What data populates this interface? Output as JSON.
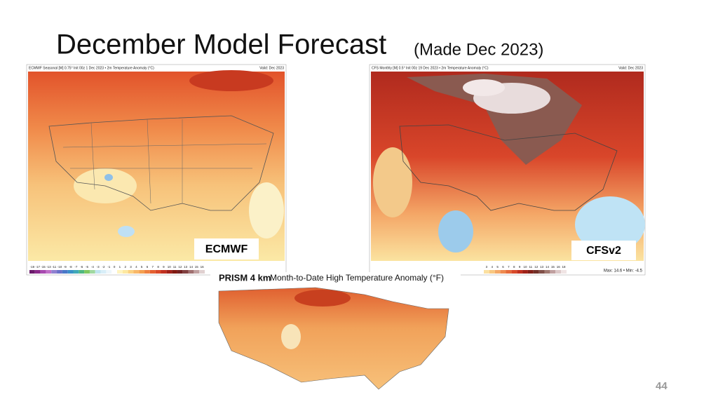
{
  "title": "December Model Forecast",
  "subtitle": "(Made Dec 2023)",
  "maps": [
    {
      "header": "ECMWF Seasonal [M] 0.75° Init 00z 1 Dec 2023 • 2m Temperature Anomaly (°C)",
      "valid": "Valid: Dec 2023",
      "label": "ECMWF",
      "scale": [
        -19,
        -17,
        -15,
        -13,
        -11,
        -10,
        -9,
        -8,
        -7,
        -6,
        -5,
        -4,
        -3,
        -2,
        -1,
        0,
        1,
        2,
        3,
        4,
        5,
        6,
        7,
        8,
        9,
        10,
        11,
        12,
        13,
        14,
        15,
        16
      ]
    },
    {
      "header": "CFS Monthly [M] 0.5° Init 00z 19 Dec 2023 • 2m Temperature Anomaly (°C)",
      "valid": "Valid: Dec 2023",
      "label": "CFSv2",
      "scale": [
        3,
        4,
        5,
        6,
        7,
        8,
        9,
        10,
        11,
        12,
        13,
        14,
        15,
        16,
        18
      ],
      "stats": "Max: 14.6 • Min: -4.5"
    },
    {
      "header": "PRISM 4 km",
      "subheader": "Month-to-Date High Temperature Anomaly (°F)"
    }
  ],
  "page_number": "44"
}
